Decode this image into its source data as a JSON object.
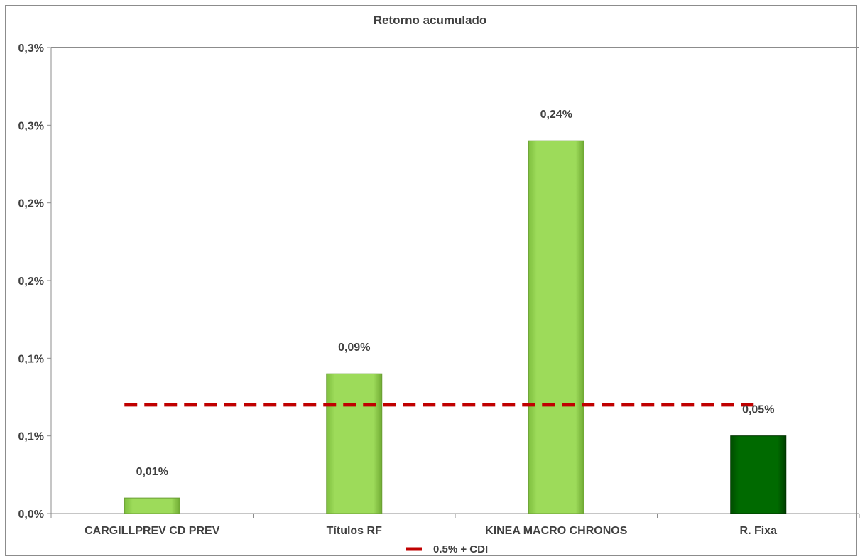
{
  "chart_data": {
    "type": "bar",
    "title": "Retorno  acumulado",
    "categories": [
      "CARGILLPREV CD PREV",
      "Títulos RF",
      "KINEA MACRO CHRONOS",
      "R. Fixa"
    ],
    "series": [
      {
        "values": [
          0.01,
          0.09,
          0.24,
          0.05
        ],
        "data_labels": [
          "0,01%",
          "0,09%",
          "0,24%",
          "0,05%"
        ],
        "colors": [
          "#92d050",
          "#92d050",
          "#92d050",
          "#006400"
        ]
      }
    ],
    "reference_line": {
      "name": "0.5% + CDI",
      "value": 0.07,
      "color": "#c00000",
      "style": "dashed"
    },
    "ylim": [
      0,
      0.3
    ],
    "y_ticks": [
      0,
      0.05,
      0.1,
      0.15,
      0.2,
      0.25,
      0.3
    ],
    "y_tick_labels": [
      "0,0%",
      "0,1%",
      "0,1%",
      "0,2%",
      "0,2%",
      "0,3%",
      "0,3%"
    ],
    "xlabel": "",
    "ylabel": "",
    "grid": false,
    "legend_position": "bottom"
  }
}
